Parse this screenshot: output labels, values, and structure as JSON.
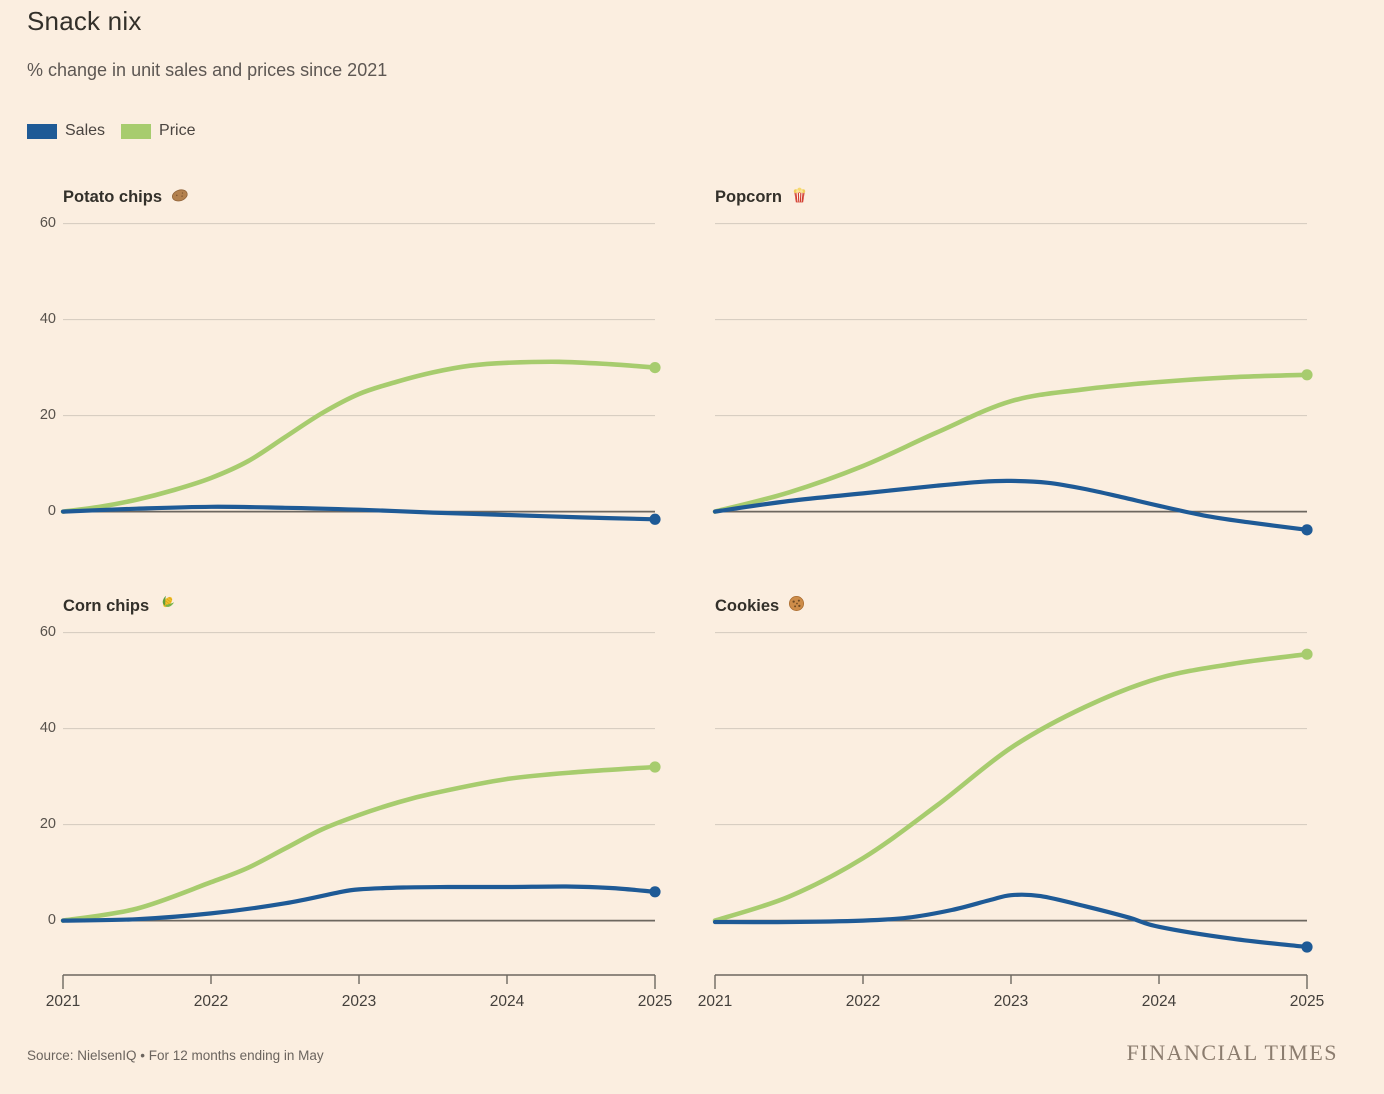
{
  "header": {
    "title": "Snack nix",
    "subtitle": "% change in unit sales and prices since 2021"
  },
  "legend": [
    {
      "label": "Sales",
      "key": "sales"
    },
    {
      "label": "Price",
      "key": "price"
    }
  ],
  "colors": {
    "sales": "#1e5a96",
    "price": "#a7cc6e",
    "background": "#fbeee0",
    "gridline": "#d8cec2",
    "zero_line": "#6d675f",
    "axis_text": "#44403c",
    "title_text": "#33302a",
    "muted_text": "#6b645e",
    "ft_logo": "#8b7c6e"
  },
  "footer": {
    "source": "Source: NielsenIQ • For 12 months ending in May",
    "brand": "FINANCIAL TIMES"
  },
  "chart_data": [
    {
      "type": "line",
      "title": "Potato chips",
      "icon": "potato",
      "position": "top-left",
      "show_y_labels": true,
      "show_x_axis": false,
      "ylabel": "% change since 2021",
      "xlabel": "",
      "ylim": [
        -8,
        65
      ],
      "yticks": [
        60,
        40,
        20,
        0
      ],
      "xticks": [
        2021,
        2022,
        2023,
        2024,
        2025
      ],
      "xlim": [
        2021,
        2025
      ],
      "series": [
        {
          "name": "Price",
          "key": "price",
          "x": [
            2021,
            2021.25,
            2021.5,
            2021.75,
            2022,
            2022.25,
            2022.5,
            2022.75,
            2023,
            2023.25,
            2023.5,
            2023.75,
            2024,
            2024.35,
            2024.7,
            2025
          ],
          "values": [
            0,
            1,
            2.5,
            4.5,
            7,
            10.5,
            15.5,
            20.5,
            24.5,
            27,
            29,
            30.4,
            31,
            31.2,
            30.7,
            30
          ]
        },
        {
          "name": "Sales",
          "key": "sales",
          "x": [
            2021,
            2021.5,
            2022,
            2022.5,
            2023,
            2023.5,
            2024,
            2024.5,
            2025
          ],
          "values": [
            0,
            0.6,
            1,
            0.8,
            0.4,
            -0.2,
            -0.7,
            -1.2,
            -1.6
          ]
        }
      ]
    },
    {
      "type": "line",
      "title": "Popcorn",
      "icon": "popcorn",
      "position": "top-right",
      "show_y_labels": false,
      "show_x_axis": false,
      "ylabel": "% change since 2021",
      "xlabel": "",
      "ylim": [
        -8,
        65
      ],
      "yticks": [
        60,
        40,
        20,
        0
      ],
      "xticks": [
        2021,
        2022,
        2023,
        2024,
        2025
      ],
      "xlim": [
        2021,
        2025
      ],
      "series": [
        {
          "name": "Price",
          "key": "price",
          "x": [
            2021,
            2021.5,
            2022,
            2022.5,
            2023,
            2023.5,
            2024,
            2024.5,
            2025
          ],
          "values": [
            0,
            4,
            9.5,
            16.5,
            23,
            25.5,
            27,
            28,
            28.5
          ]
        },
        {
          "name": "Sales",
          "key": "sales",
          "x": [
            2021,
            2021.5,
            2022,
            2022.5,
            2022.8,
            2023,
            2023.25,
            2023.5,
            2023.75,
            2024,
            2024.3,
            2024.6,
            2025
          ],
          "values": [
            0,
            2.2,
            3.8,
            5.4,
            6.2,
            6.4,
            6,
            4.7,
            3,
            1.2,
            -0.8,
            -2.2,
            -3.8
          ]
        }
      ]
    },
    {
      "type": "line",
      "title": "Corn chips",
      "icon": "corn",
      "position": "bottom-left",
      "show_y_labels": true,
      "show_x_axis": true,
      "ylabel": "% change since 2021",
      "xlabel": "",
      "ylim": [
        -8,
        65
      ],
      "yticks": [
        60,
        40,
        20,
        0
      ],
      "xticks": [
        2021,
        2022,
        2023,
        2024,
        2025
      ],
      "xlim": [
        2021,
        2025
      ],
      "series": [
        {
          "name": "Price",
          "key": "price",
          "x": [
            2021,
            2021.5,
            2022,
            2022.25,
            2022.5,
            2022.75,
            2023,
            2023.25,
            2023.5,
            2024,
            2024.5,
            2025
          ],
          "values": [
            0,
            2.5,
            8,
            11,
            15,
            19,
            22,
            24.5,
            26.5,
            29.5,
            31,
            32
          ]
        },
        {
          "name": "Sales",
          "key": "sales",
          "x": [
            2021,
            2021.5,
            2022,
            2022.5,
            2022.85,
            2023,
            2023.3,
            2023.6,
            2024,
            2024.4,
            2024.7,
            2025
          ],
          "values": [
            0,
            0.3,
            1.5,
            3.6,
            5.8,
            6.5,
            6.9,
            7,
            7,
            7.1,
            6.8,
            6
          ]
        }
      ]
    },
    {
      "type": "line",
      "title": "Cookies",
      "icon": "cookie",
      "position": "bottom-right",
      "show_y_labels": false,
      "show_x_axis": true,
      "ylabel": "% change since 2021",
      "xlabel": "",
      "ylim": [
        -8,
        65
      ],
      "yticks": [
        60,
        40,
        20,
        0
      ],
      "xticks": [
        2021,
        2022,
        2023,
        2024,
        2025
      ],
      "xlim": [
        2021,
        2025
      ],
      "series": [
        {
          "name": "Price",
          "key": "price",
          "x": [
            2021,
            2021.5,
            2022,
            2022.5,
            2023,
            2023.5,
            2024,
            2024.5,
            2025
          ],
          "values": [
            0,
            5,
            13,
            24,
            36,
            44.5,
            50.5,
            53.5,
            55.5
          ]
        },
        {
          "name": "Sales",
          "key": "sales",
          "x": [
            2021,
            2021.5,
            2022,
            2022.3,
            2022.6,
            2022.85,
            2023,
            2023.2,
            2023.5,
            2023.8,
            2024,
            2024.5,
            2025
          ],
          "values": [
            -0.3,
            -0.3,
            0,
            0.6,
            2.2,
            4.2,
            5.3,
            5.1,
            3,
            0.6,
            -1.3,
            -3.8,
            -5.5
          ]
        }
      ]
    }
  ]
}
